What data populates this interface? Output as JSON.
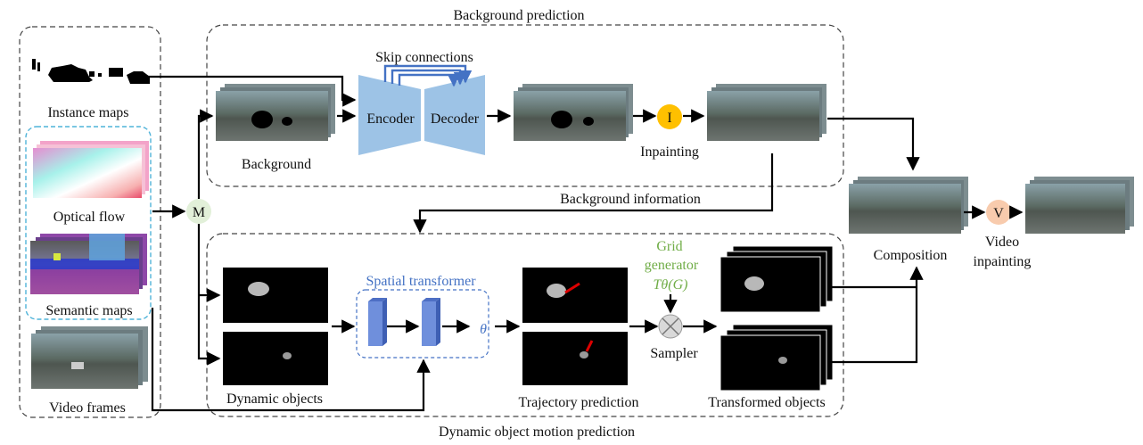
{
  "title_top": "Background prediction",
  "title_bottom": "Dynamic object motion prediction",
  "inputs": {
    "instance_maps": "Instance maps",
    "optical_flow": "Optical flow",
    "semantic_maps": "Semantic maps",
    "video_frames": "Video frames"
  },
  "background_branch": {
    "skip_connections": "Skip connections",
    "encoder": "Encoder",
    "decoder": "Decoder",
    "background": "Background",
    "inpainting": "Inpainting",
    "inpainting_symbol": "I"
  },
  "merge_symbol": "M",
  "background_information": "Background information",
  "motion_branch": {
    "spatial_transformer": "Spatial transformer",
    "theta": "θ",
    "dynamic_objects": "Dynamic objects",
    "grid_generator_line1": "Grid",
    "grid_generator_line2": "generator",
    "grid_generator_formula": "Tθ(G)",
    "sampler": "Sampler",
    "trajectory_prediction": "Trajectory prediction",
    "transformed_objects": "Transformed objects"
  },
  "output": {
    "composition": "Composition",
    "video_inpainting_symbol": "V",
    "video_inpainting_line1": "Video",
    "video_inpainting_line2": "inpainting"
  },
  "colors": {
    "encoder_decoder": "#9dc3e6",
    "inpaint_circle": "#ffc000",
    "video_circle": "#f8cbad",
    "merge_circle": "#e2f0d9",
    "st_block": "#6f8fdc",
    "st_border": "#4472c4",
    "skip_arrow": "#4472c4",
    "green_text": "#70ad47"
  }
}
